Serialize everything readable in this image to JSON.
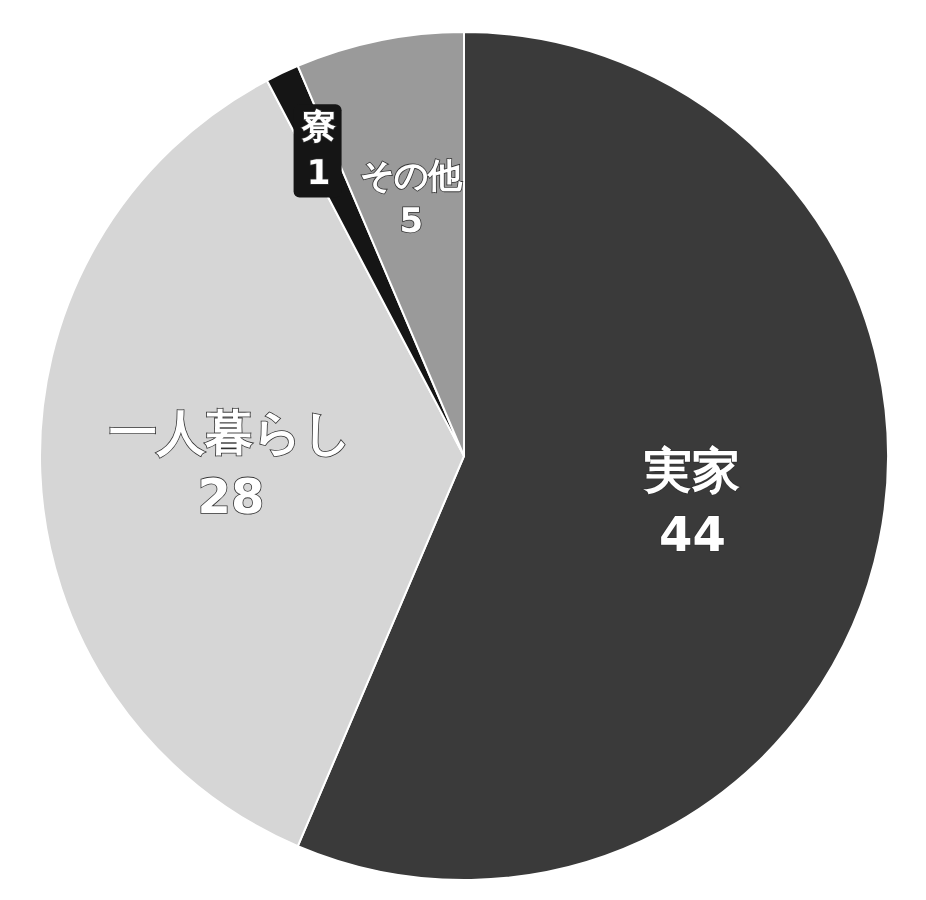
{
  "chart_data": {
    "type": "pie",
    "categories": [
      "実家",
      "一人暮らし",
      "寮",
      "その他"
    ],
    "values": [
      44,
      28,
      1,
      5
    ],
    "colors": [
      "#3a3a3a",
      "#d6d6d6",
      "#151515",
      "#9a9a9a"
    ],
    "data_labels": true
  }
}
